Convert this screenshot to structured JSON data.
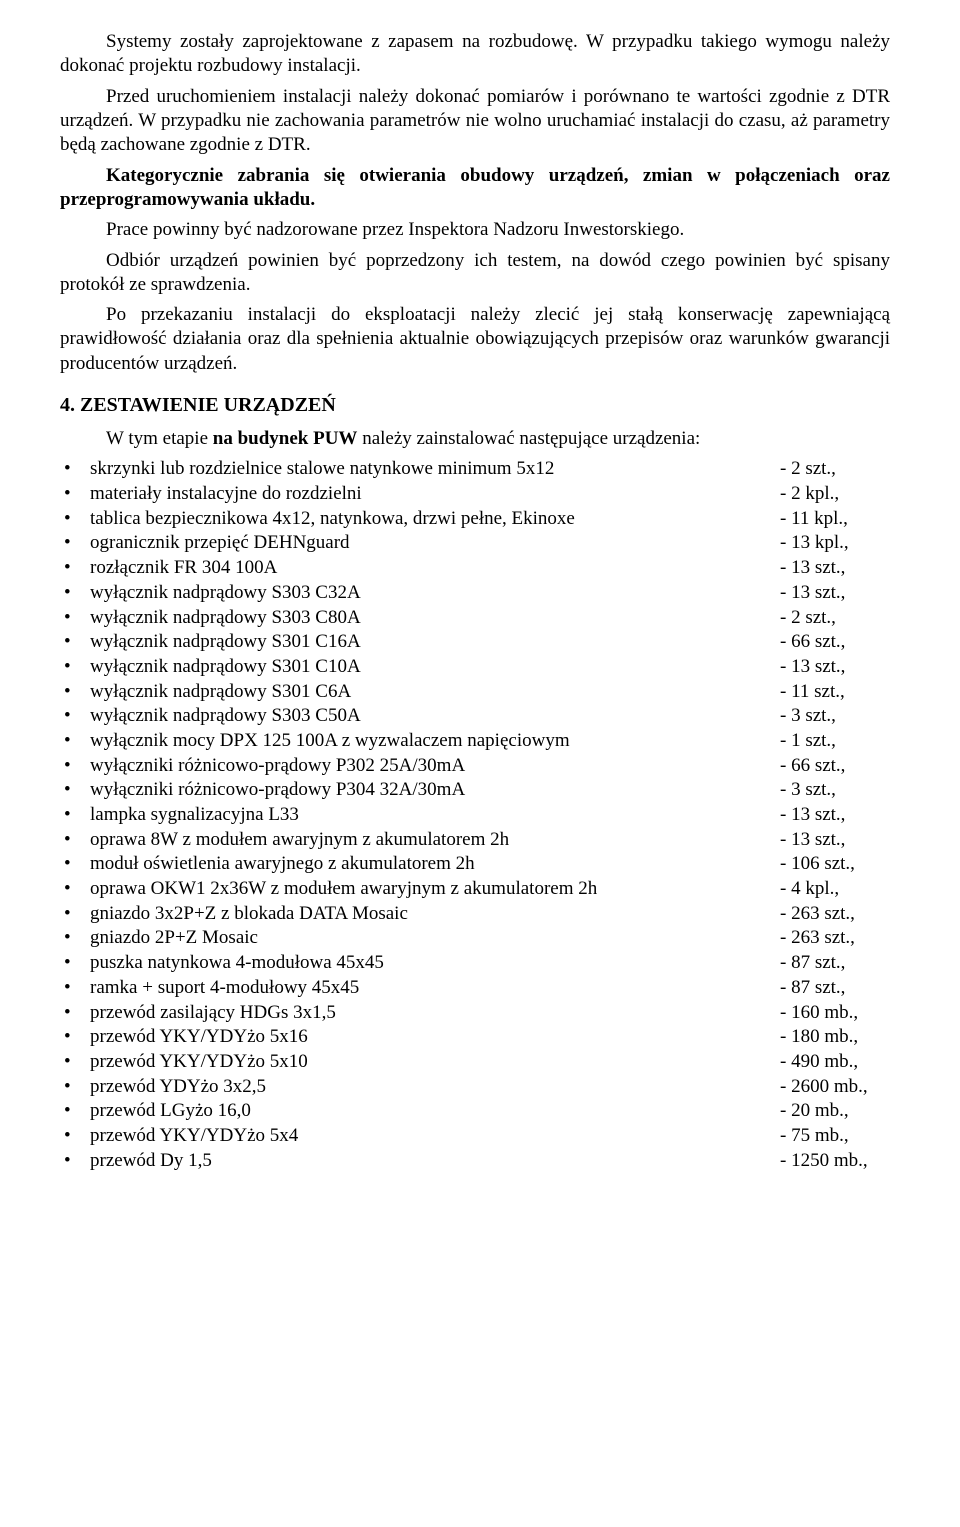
{
  "paragraphs": {
    "p1": "Systemy zostały zaprojektowane z zapasem na rozbudowę. W przypadku takiego wymogu należy dokonać projektu rozbudowy instalacji.",
    "p2": "Przed uruchomieniem instalacji należy dokonać pomiarów i porównano te wartości zgodnie z DTR urządzeń. W przypadku nie zachowania parametrów nie wolno uruchamiać instalacji do czasu, aż parametry będą zachowane zgodnie z DTR.",
    "p3": "Kategorycznie zabrania się otwierania obudowy urządzeń, zmian w połączeniach oraz przeprogramowywania układu.",
    "p4": "Prace powinny być nadzorowane przez Inspektora Nadzoru Inwestorskiego.",
    "p5": "Odbiór urządzeń powinien być poprzedzony ich  testem, na dowód czego powinien być spisany protokół ze sprawdzenia.",
    "p6": "Po przekazaniu instalacji do eksploatacji należy zlecić jej stałą konserwację zapewniającą prawidłowość działania oraz dla spełnienia aktualnie obowiązujących przepisów oraz warunków gwarancji producentów urządzeń."
  },
  "section": {
    "heading": "4. ZESTAWIENIE URZĄDZEŃ",
    "intro_prefix": "W tym etapie ",
    "intro_bold": "na budynek PUW",
    "intro_suffix": " należy zainstalować następujące urządzenia:"
  },
  "bullet": "•",
  "devices": [
    {
      "name": "skrzynki lub rozdzielnice stalowe natynkowe minimum 5x12",
      "qty": "- 2 szt.,"
    },
    {
      "name": "materiały instalacyjne do rozdzielni",
      "qty": "- 2 kpl.,"
    },
    {
      "name": "tablica bezpiecznikowa 4x12, natynkowa, drzwi pełne, Ekinoxe",
      "qty": "- 11 kpl.,"
    },
    {
      "name": "ogranicznik przepięć DEHNguard",
      "qty": "- 13 kpl.,"
    },
    {
      "name": "rozłącznik FR 304 100A",
      "qty": "- 13 szt.,"
    },
    {
      "name": "wyłącznik nadprądowy S303 C32A",
      "qty": "- 13 szt.,"
    },
    {
      "name": "wyłącznik nadprądowy S303 C80A",
      "qty": "- 2 szt.,"
    },
    {
      "name": "wyłącznik nadprądowy S301 C16A",
      "qty": "- 66 szt.,"
    },
    {
      "name": "wyłącznik nadprądowy S301 C10A",
      "qty": "- 13 szt.,"
    },
    {
      "name": "wyłącznik nadprądowy S301 C6A",
      "qty": "- 11 szt.,"
    },
    {
      "name": "wyłącznik nadprądowy S303 C50A",
      "qty": "- 3 szt.,"
    },
    {
      "name": "wyłącznik mocy DPX 125 100A z wyzwalaczem napięciowym",
      "qty": "- 1 szt.,"
    },
    {
      "name": "wyłączniki różnicowo-prądowy P302 25A/30mA",
      "qty": "- 66 szt.,"
    },
    {
      "name": "wyłączniki różnicowo-prądowy  P304 32A/30mA",
      "qty": "- 3 szt.,"
    },
    {
      "name": "lampka sygnalizacyjna L33",
      "qty": "- 13 szt.,"
    },
    {
      "name": "oprawa 8W z modułem awaryjnym z akumulatorem 2h",
      "qty": "- 13 szt.,"
    },
    {
      "name": "moduł oświetlenia awaryjnego z akumulatorem 2h",
      "qty": "- 106 szt.,"
    },
    {
      "name": "oprawa OKW1 2x36W z modułem awaryjnym z akumulatorem 2h",
      "qty": "- 4 kpl.,"
    },
    {
      "name": "gniazdo 3x2P+Z z blokada DATA Mosaic",
      "qty": "- 263 szt.,"
    },
    {
      "name": "gniazdo 2P+Z Mosaic",
      "qty": "- 263 szt.,"
    },
    {
      "name": "puszka natynkowa 4-modułowa 45x45",
      "qty": "- 87 szt.,"
    },
    {
      "name": "ramka + suport 4-modułowy 45x45",
      "qty": "- 87 szt.,"
    },
    {
      "name": "przewód zasilający HDGs 3x1,5",
      "qty": "- 160 mb.,"
    },
    {
      "name": "przewód YKY/YDYżo 5x16",
      "qty": "- 180 mb.,"
    },
    {
      "name": "przewód YKY/YDYżo 5x10",
      "qty": "- 490 mb.,"
    },
    {
      "name": "przewód YDYżo 3x2,5",
      "qty": "- 2600 mb.,"
    },
    {
      "name": "przewód LGyżo 16,0",
      "qty": "- 20 mb.,"
    },
    {
      "name": "przewód YKY/YDYżo 5x4",
      "qty": "- 75 mb.,"
    },
    {
      "name": "przewód Dy 1,5",
      "qty": "- 1250 mb.,"
    }
  ]
}
